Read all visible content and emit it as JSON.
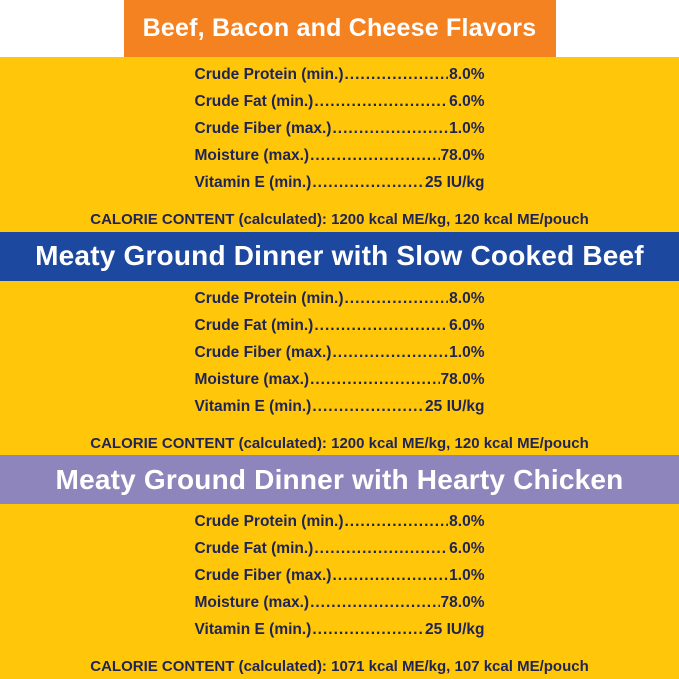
{
  "colors": {
    "background": "#FFC60A",
    "orange": "#F58220",
    "blue": "#1C499F",
    "purple": "#8E85BC",
    "text": "#1E2455",
    "banner_text": "#FFFFFF",
    "top_strip": "#FFFFFF"
  },
  "sections": [
    {
      "title": "Beef, Bacon and Cheese Flavors",
      "banner_color": "#F58220",
      "nutrients": [
        {
          "label": "Crude Protein (min.)",
          "value": "8.0%"
        },
        {
          "label": "Crude Fat (min.)",
          "value": "6.0%"
        },
        {
          "label": "Crude Fiber (max.)",
          "value": "1.0%"
        },
        {
          "label": "Moisture (max.)",
          "value": "78.0%"
        },
        {
          "label": "Vitamin E (min.)",
          "value": "25 IU/kg"
        }
      ],
      "calorie_label": "CALORIE CONTENT (calculated):",
      "calorie_value": "1200 kcal ME/kg, 120 kcal ME/pouch"
    },
    {
      "title": "Meaty Ground Dinner with Slow Cooked Beef",
      "banner_color": "#1C499F",
      "nutrients": [
        {
          "label": "Crude Protein (min.)",
          "value": "8.0%"
        },
        {
          "label": "Crude Fat (min.)",
          "value": "6.0%"
        },
        {
          "label": "Crude Fiber (max.)",
          "value": "1.0%"
        },
        {
          "label": "Moisture (max.)",
          "value": "78.0%"
        },
        {
          "label": "Vitamin E (min.)",
          "value": "25 IU/kg"
        }
      ],
      "calorie_label": "CALORIE CONTENT (calculated):",
      "calorie_value": "1200 kcal ME/kg, 120 kcal ME/pouch"
    },
    {
      "title": "Meaty Ground Dinner with Hearty Chicken",
      "banner_color": "#8E85BC",
      "nutrients": [
        {
          "label": "Crude Protein (min.)",
          "value": "8.0%"
        },
        {
          "label": "Crude Fat (min.)",
          "value": "6.0%"
        },
        {
          "label": "Crude Fiber (max.)",
          "value": "1.0%"
        },
        {
          "label": "Moisture (max.)",
          "value": "78.0%"
        },
        {
          "label": "Vitamin E (min.)",
          "value": "25 IU/kg"
        }
      ],
      "calorie_label": "CALORIE CONTENT (calculated):",
      "calorie_value": "1071 kcal ME/kg, 107 kcal ME/pouch"
    }
  ]
}
